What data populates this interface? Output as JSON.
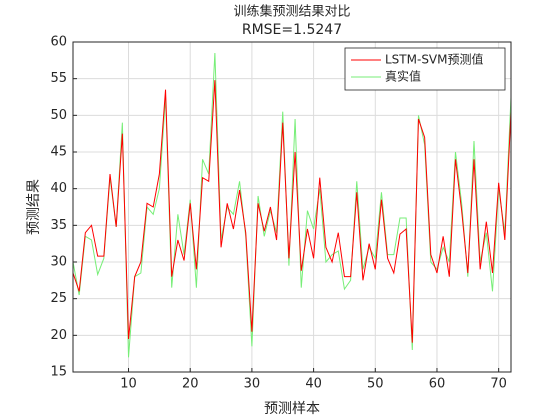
{
  "chart_data": {
    "type": "line",
    "title": "训练集预测结果对比",
    "subtitle": "RMSE=1.5247",
    "x_label": "预测样本",
    "y_label": "预测结果",
    "x": [
      1,
      2,
      3,
      4,
      5,
      6,
      7,
      8,
      9,
      10,
      11,
      12,
      13,
      14,
      15,
      16,
      17,
      18,
      19,
      20,
      21,
      22,
      23,
      24,
      25,
      26,
      27,
      28,
      29,
      30,
      31,
      32,
      33,
      34,
      35,
      36,
      37,
      38,
      39,
      40,
      41,
      42,
      43,
      44,
      45,
      46,
      47,
      48,
      49,
      50,
      51,
      52,
      53,
      54,
      55,
      56,
      57,
      58,
      59,
      60,
      61,
      62,
      63,
      64,
      65,
      66,
      67,
      68,
      69,
      70,
      71,
      72
    ],
    "series": [
      {
        "name": "LSTM-SVM预测值",
        "color": "#ff0000",
        "values": [
          28.5,
          26,
          34,
          35,
          30.8,
          30.8,
          42,
          34.8,
          47.5,
          19.5,
          28,
          30,
          38,
          37.5,
          42,
          53.5,
          28,
          33,
          30.2,
          38,
          29,
          41.5,
          41,
          54.8,
          32,
          38,
          34.5,
          39.8,
          34,
          20.5,
          38,
          34.2,
          37.5,
          33,
          49,
          30.5,
          45,
          28.8,
          34.5,
          30.5,
          41.5,
          32,
          30,
          34,
          28,
          28,
          39.5,
          27.5,
          32.5,
          29,
          38.5,
          30.5,
          28.5,
          33.8,
          34.5,
          19,
          49.5,
          47,
          31,
          28.5,
          33.5,
          28,
          44,
          37,
          28.5,
          44,
          29,
          35.5,
          28.5,
          40.8,
          33,
          50.5
        ]
      },
      {
        "name": "真实值",
        "color": "#77ee77",
        "values": [
          30,
          25.5,
          33.5,
          33,
          28.3,
          30.5,
          41.5,
          34.8,
          49,
          17,
          28,
          28.5,
          37.5,
          36.5,
          40,
          52.5,
          26.5,
          36.5,
          31,
          38.5,
          26.5,
          44,
          42,
          58.5,
          33,
          37.5,
          36.5,
          41,
          33.5,
          18.5,
          39,
          33.5,
          37,
          34,
          50.5,
          29.5,
          49.5,
          26.5,
          37,
          34.5,
          40,
          30,
          31,
          31.5,
          26.3,
          27.5,
          41,
          29,
          32,
          30.5,
          39.5,
          31,
          31,
          36,
          36,
          18,
          50,
          46,
          30,
          29,
          32,
          30,
          45,
          38,
          28,
          46.5,
          30,
          34,
          26,
          40,
          34,
          52.5
        ]
      }
    ],
    "xlim": [
      1,
      72
    ],
    "xticks": [
      10,
      20,
      30,
      40,
      50,
      60,
      70
    ],
    "ylim": [
      15,
      60
    ],
    "yticks": [
      15,
      20,
      25,
      30,
      35,
      40,
      45,
      50,
      55,
      60
    ],
    "grid": true,
    "legend_position": "northeast"
  }
}
